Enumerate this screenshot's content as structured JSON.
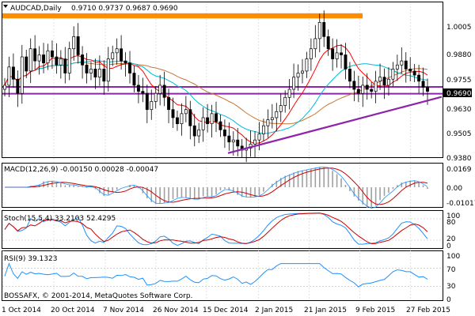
{
  "header": {
    "symbol_label": "AUDCAD,Daily",
    "ohlc": "0.9710 0.9737 0.9687 0.9690",
    "menu_icon": "triangle-down-icon"
  },
  "price_axis": {
    "ticks": [
      "1.0005",
      "0.9880",
      "0.9755",
      "0.9630",
      "0.9505",
      "0.9380"
    ],
    "current_price_label": "0.9690"
  },
  "macd_panel": {
    "label": "MACD(12,26,9) -0.00150 0.00028 -0.00047",
    "ticks": [
      "0.0169",
      "0.00",
      "-0.01017"
    ]
  },
  "stoch_panel": {
    "label": "Stoch(15,5,4) 33.2103 52.4295",
    "ticks": [
      "100",
      "80",
      "20",
      "0"
    ]
  },
  "rsi_panel": {
    "label": "RSI(9) 39.1323",
    "ticks": [
      "100",
      "70",
      "30",
      "0"
    ]
  },
  "footer": {
    "copyright": "BOSSAFX, © 2001-2014, MetaQuotes Software Corp."
  },
  "time_axis": {
    "labels": [
      "1 Oct 2014",
      "20 Oct 2014",
      "7 Nov 2014",
      "26 Nov 2014",
      "15 Dec 2014",
      "2 Jan 2015",
      "21 Jan 2015",
      "9 Feb 2015",
      "27 Feb 2015"
    ]
  },
  "colors": {
    "candle_up": "#000000",
    "candle_down": "#000000",
    "ma_fast": "#ff0000",
    "ma_mid": "#00bcd4",
    "ma_slow": "#c87533",
    "support_line": "#8e24aa",
    "resistance_zone": "#ff8c00",
    "macd_hist": "#a0a0a0",
    "macd_signal": "#cc0000",
    "stoch_main": "#1e90ff",
    "stoch_signal": "#cc0000",
    "rsi_line": "#1e90ff",
    "price_tag_bg": "#000000"
  },
  "chart_data": {
    "type": "candlestick",
    "symbol": "AUDCAD",
    "timeframe": "Daily",
    "ylim": [
      0.9365,
      1.0125
    ],
    "resistance_zone": [
      1.005,
      1.0075
    ],
    "horizontal_support": 0.9712,
    "horizontal_support_2": 0.969,
    "trendline": {
      "from": [
        "12 Dec 2014",
        0.9385
      ],
      "to": [
        "2 Mar 2015",
        0.969
      ]
    },
    "closes": [
      0.972,
      0.981,
      0.975,
      0.968,
      0.986,
      0.979,
      0.99,
      0.984,
      0.987,
      0.983,
      0.989,
      0.986,
      0.982,
      0.985,
      0.978,
      0.99,
      0.996,
      0.987,
      0.982,
      0.978,
      0.98,
      0.976,
      0.98,
      0.974,
      0.985,
      0.988,
      0.99,
      0.984,
      0.983,
      0.978,
      0.972,
      0.969,
      0.968,
      0.96,
      0.964,
      0.968,
      0.972,
      0.966,
      0.96,
      0.956,
      0.953,
      0.958,
      0.96,
      0.952,
      0.947,
      0.95,
      0.956,
      0.953,
      0.958,
      0.954,
      0.95,
      0.947,
      0.944,
      0.945,
      0.942,
      0.94,
      0.941,
      0.943,
      0.945,
      0.948,
      0.952,
      0.955,
      0.956,
      0.959,
      0.962,
      0.966,
      0.97,
      0.976,
      0.978,
      0.979,
      0.985,
      0.99,
      0.995,
      1.003,
      0.996,
      0.99,
      0.985,
      0.988,
      0.987,
      0.98,
      0.974,
      0.97,
      0.968,
      0.972,
      0.97,
      0.969,
      0.974,
      0.976,
      0.972,
      0.975,
      0.98,
      0.982,
      0.984,
      0.98,
      0.979,
      0.977,
      0.974,
      0.971,
      0.969
    ],
    "moving_averages": [
      "fast (red)",
      "mid (cyan)",
      "slow (brown)"
    ],
    "macd": {
      "params": [
        12,
        26,
        9
      ],
      "values": [
        -0.0015,
        0.00028,
        -0.00047
      ],
      "range": [
        -0.01017,
        0.0169
      ]
    },
    "stoch": {
      "params": [
        15,
        5,
        4
      ],
      "main": 33.2103,
      "signal": 52.4295,
      "levels": [
        80,
        20
      ]
    },
    "rsi": {
      "period": 9,
      "value": 39.1323,
      "levels": [
        70,
        30
      ]
    }
  }
}
